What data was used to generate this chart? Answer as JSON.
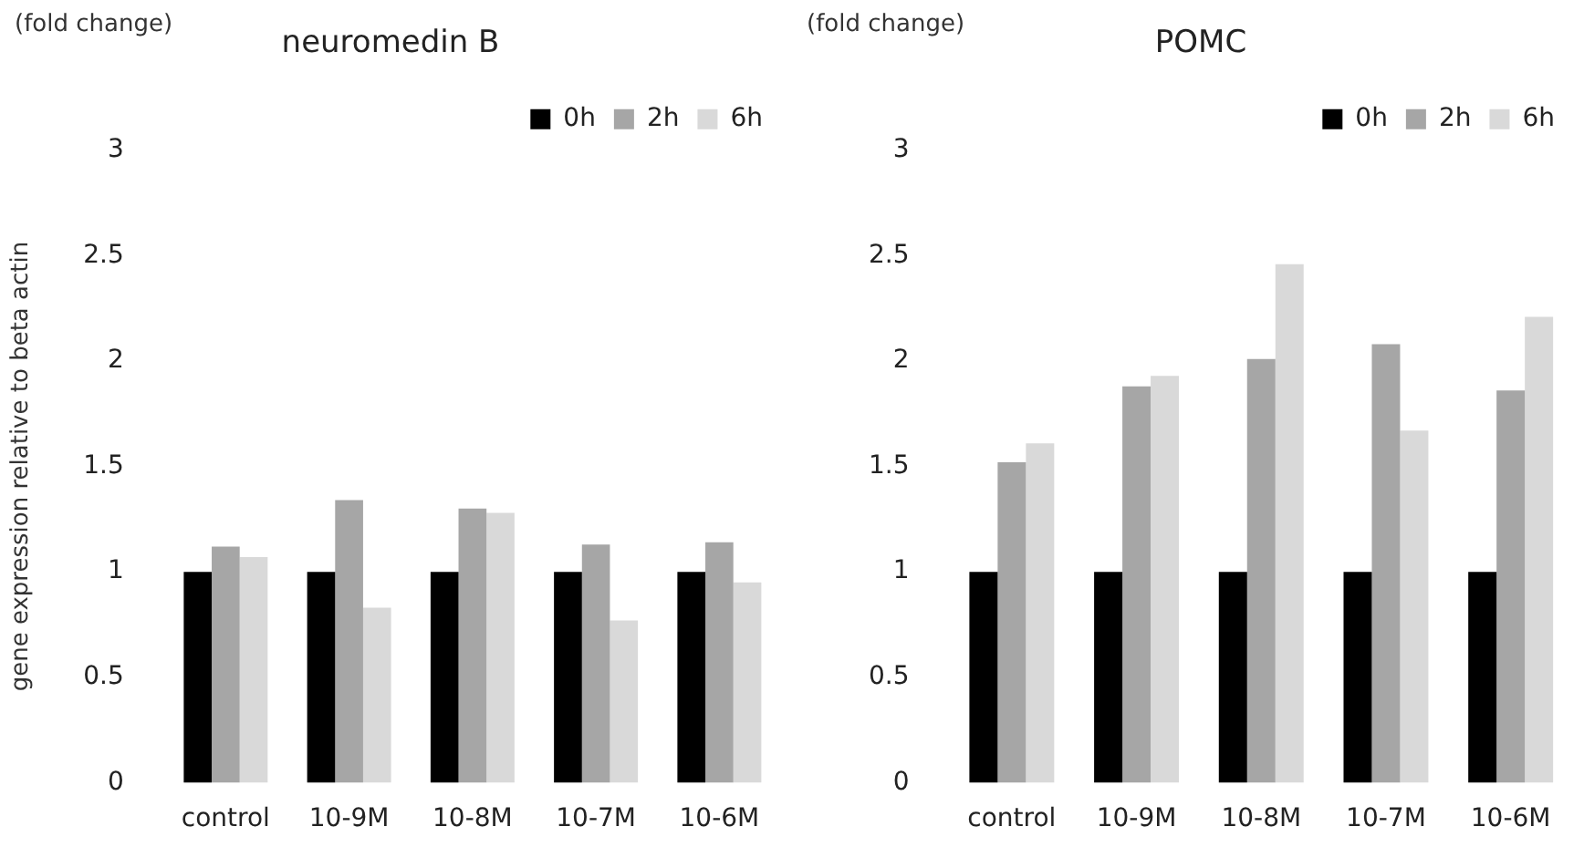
{
  "chart_data": [
    {
      "type": "bar",
      "title": "neuromedin B",
      "ylabel": "gene expression relative to beta actin",
      "annotations": [
        "(fold change)"
      ],
      "categories": [
        "control",
        "10-9M",
        "10-8M",
        "10-7M",
        "10-6M"
      ],
      "series": [
        {
          "name": "0h",
          "color": "#000000",
          "values": [
            1,
            1,
            1,
            1,
            1
          ]
        },
        {
          "name": "2h",
          "color": "#a6a6a6",
          "values": [
            1.12,
            1.34,
            1.3,
            1.13,
            1.14
          ]
        },
        {
          "name": "6h",
          "color": "#d9d9d9",
          "values": [
            1.07,
            0.83,
            1.28,
            0.77,
            0.95
          ]
        }
      ],
      "ylim": [
        0,
        3
      ],
      "yticks": [
        0,
        0.5,
        1,
        1.5,
        2,
        2.5,
        3
      ],
      "grid": false,
      "legend": "top right"
    },
    {
      "type": "bar",
      "title": "POMC",
      "annotations": [
        "(fold change)"
      ],
      "categories": [
        "control",
        "10-9M",
        "10-8M",
        "10-7M",
        "10-6M"
      ],
      "series": [
        {
          "name": "0h",
          "color": "#000000",
          "values": [
            1,
            1,
            1,
            1,
            1
          ]
        },
        {
          "name": "2h",
          "color": "#a6a6a6",
          "values": [
            1.52,
            1.88,
            2.01,
            2.08,
            1.86
          ]
        },
        {
          "name": "6h",
          "color": "#d9d9d9",
          "values": [
            1.61,
            1.93,
            2.46,
            1.67,
            2.21
          ]
        }
      ],
      "ylim": [
        0,
        3
      ],
      "yticks": [
        0,
        0.5,
        1,
        1.5,
        2,
        2.5,
        3
      ],
      "grid": false,
      "legend": "top right"
    }
  ]
}
